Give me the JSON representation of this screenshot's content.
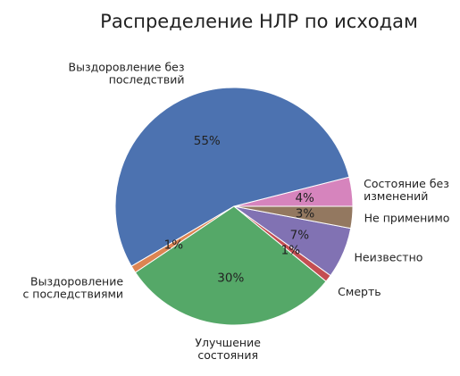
{
  "chart_data": {
    "type": "pie",
    "title": "Распределение НЛР по исходам",
    "slices": [
      {
        "label": [
          "Состояние без",
          "изменений"
        ],
        "value": 4,
        "pct_label": "4%",
        "color": "#d684bd"
      },
      {
        "label": [
          "Выздоровление без",
          "последствий"
        ],
        "value": 55,
        "pct_label": "55%",
        "color": "#4c72b0"
      },
      {
        "label": [
          "Выздоровление",
          "с последствиями"
        ],
        "value": 1,
        "pct_label": "1%",
        "color": "#dd8452"
      },
      {
        "label": [
          "Улучшение",
          "состояния"
        ],
        "value": 30,
        "pct_label": "30%",
        "color": "#55a868"
      },
      {
        "label": [
          "Смерть"
        ],
        "value": 1,
        "pct_label": "1%",
        "color": "#c44e52"
      },
      {
        "label": [
          "Неизвестно"
        ],
        "value": 7,
        "pct_label": "7%",
        "color": "#8172b3"
      },
      {
        "label": [
          "Не применимо"
        ],
        "value": 3,
        "pct_label": "3%",
        "color": "#937860"
      }
    ]
  }
}
